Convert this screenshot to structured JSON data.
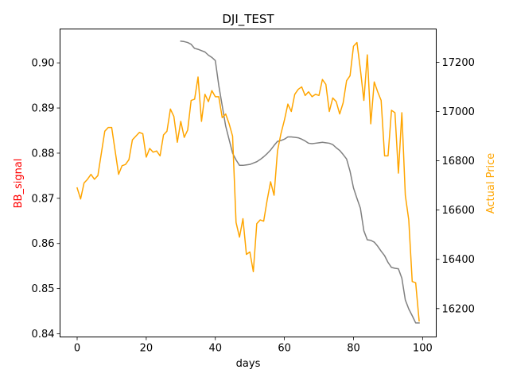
{
  "chart_data": {
    "type": "line",
    "title": "DJI_TEST",
    "xlabel": "days",
    "ylabel_left": "BB_signal",
    "ylabel_right": "Actual Price",
    "xlim": [
      -4.95,
      103.95
    ],
    "ylim_left": [
      0.8393,
      0.9075
    ],
    "ylim_right": [
      16085,
      17335
    ],
    "x_ticks": [
      0,
      20,
      40,
      60,
      80,
      100
    ],
    "y_left_ticks": [
      0.84,
      0.85,
      0.86,
      0.87,
      0.88,
      0.89,
      0.9
    ],
    "y_left_tick_labels": [
      "0.84",
      "0.85",
      "0.86",
      "0.87",
      "0.88",
      "0.89",
      "0.90"
    ],
    "y_right_ticks": [
      16200,
      16400,
      16600,
      16800,
      17000,
      17200
    ],
    "grid": false,
    "legend": "none",
    "series": [
      {
        "axis": "left",
        "color": "#808080",
        "x": [
          30,
          31,
          32,
          33,
          34,
          35,
          36,
          37,
          38,
          39,
          40,
          41,
          42,
          43,
          44,
          45,
          46,
          47,
          48,
          49,
          50,
          51,
          52,
          53,
          54,
          55,
          56,
          57,
          58,
          59,
          60,
          61,
          62,
          63,
          64,
          65,
          66,
          67,
          68,
          69,
          70,
          71,
          72,
          73,
          74,
          75,
          76,
          77,
          78,
          79,
          80,
          81,
          82,
          83,
          84,
          85,
          86,
          87,
          88,
          89,
          90,
          91,
          92,
          93,
          94,
          95,
          96,
          97,
          98,
          99
        ],
        "values": [
          0.9048,
          0.9047,
          0.9045,
          0.9041,
          0.9032,
          0.903,
          0.9027,
          0.9024,
          0.9017,
          0.9012,
          0.9005,
          0.895,
          0.8905,
          0.886,
          0.883,
          0.88,
          0.8785,
          0.8773,
          0.8773,
          0.8774,
          0.8775,
          0.8778,
          0.8781,
          0.8786,
          0.8792,
          0.8799,
          0.8807,
          0.8817,
          0.8826,
          0.8828,
          0.8831,
          0.8836,
          0.8836,
          0.8835,
          0.8834,
          0.8831,
          0.8827,
          0.8822,
          0.8821,
          0.8822,
          0.8823,
          0.8824,
          0.8823,
          0.8822,
          0.8819,
          0.8812,
          0.8806,
          0.8797,
          0.8787,
          0.876,
          0.8723,
          0.87,
          0.8678,
          0.8628,
          0.8608,
          0.8607,
          0.8603,
          0.8594,
          0.8583,
          0.8573,
          0.8558,
          0.8547,
          0.8545,
          0.8544,
          0.8523,
          0.8475,
          0.8455,
          0.844,
          0.8424,
          0.8424
        ]
      },
      {
        "axis": "right",
        "color": "#ffa500",
        "x": [
          0,
          1,
          2,
          3,
          4,
          5,
          6,
          7,
          8,
          9,
          10,
          11,
          12,
          13,
          14,
          15,
          16,
          17,
          18,
          19,
          20,
          21,
          22,
          23,
          24,
          25,
          26,
          27,
          28,
          29,
          30,
          31,
          32,
          33,
          34,
          35,
          36,
          37,
          38,
          39,
          40,
          41,
          42,
          43,
          44,
          45,
          46,
          47,
          48,
          49,
          50,
          51,
          52,
          53,
          54,
          55,
          56,
          57,
          58,
          59,
          60,
          61,
          62,
          63,
          64,
          65,
          66,
          67,
          68,
          69,
          70,
          71,
          72,
          73,
          74,
          75,
          76,
          77,
          78,
          79,
          80,
          81,
          82,
          83,
          84,
          85,
          86,
          87,
          88,
          89,
          90,
          91,
          92,
          93,
          94,
          95,
          96,
          97,
          98,
          99
        ],
        "values": [
          16690,
          16645,
          16710,
          16725,
          16745,
          16725,
          16740,
          16830,
          16920,
          16935,
          16935,
          16840,
          16745,
          16780,
          16785,
          16805,
          16885,
          16900,
          16915,
          16910,
          16815,
          16850,
          16835,
          16840,
          16820,
          16905,
          16920,
          17010,
          16980,
          16875,
          16960,
          16895,
          16925,
          17045,
          17050,
          17140,
          16960,
          17070,
          17040,
          17085,
          17060,
          17060,
          16975,
          16990,
          16950,
          16900,
          16550,
          16490,
          16565,
          16420,
          16430,
          16350,
          16545,
          16560,
          16555,
          16640,
          16715,
          16660,
          16840,
          16910,
          16965,
          17030,
          17000,
          17070,
          17090,
          17100,
          17065,
          17080,
          17060,
          17070,
          17065,
          17130,
          17110,
          17000,
          17055,
          17040,
          16990,
          17035,
          17125,
          17145,
          17265,
          17280,
          17170,
          17045,
          17230,
          16950,
          17120,
          17080,
          17045,
          16820,
          16820,
          17005,
          16995,
          16750,
          16995,
          16660,
          16560,
          16310,
          16305,
          16150
        ]
      }
    ]
  }
}
